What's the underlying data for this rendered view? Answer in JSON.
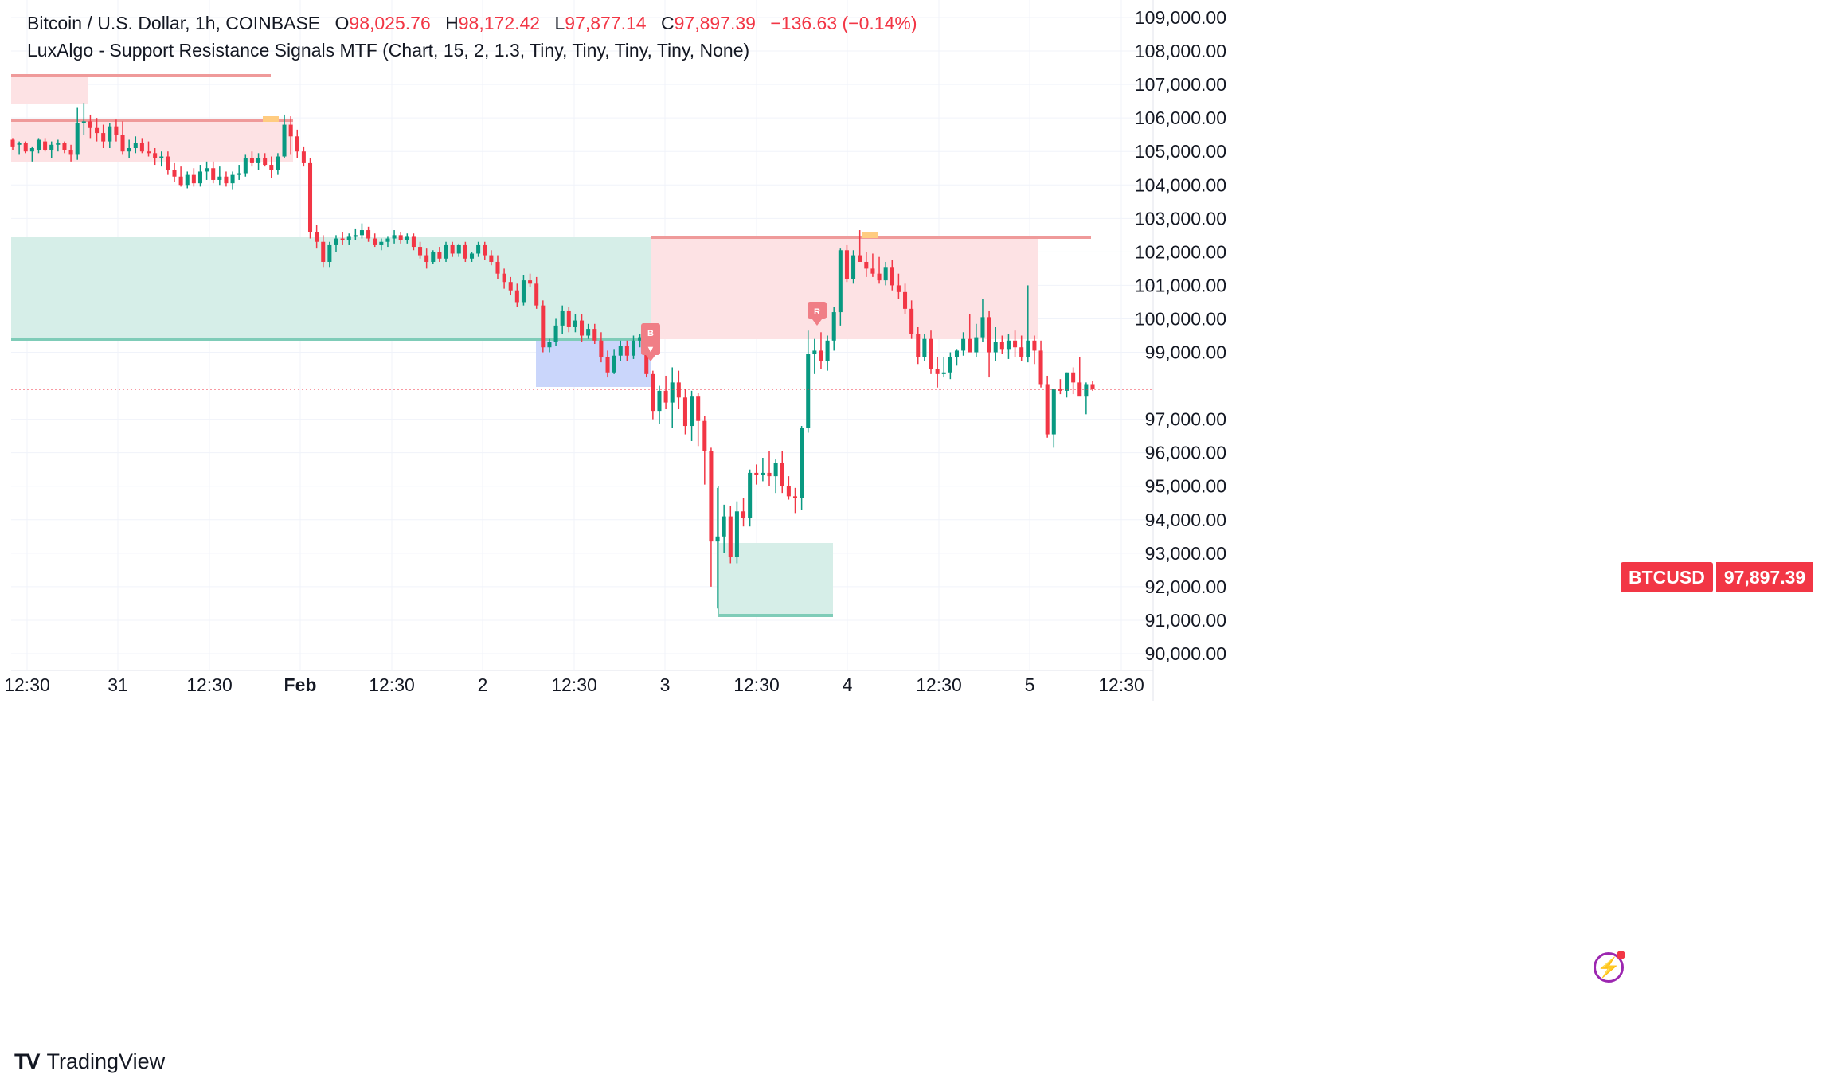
{
  "legend": {
    "symbol": "Bitcoin / U.S. Dollar, 1h, COINBASE",
    "open_label": "O",
    "open": "98,025.76",
    "high_label": "H",
    "high": "98,172.42",
    "low_label": "L",
    "low": "97,877.14",
    "close_label": "C",
    "close": "97,897.39",
    "change": "−136.63 (−0.14%)",
    "indicator": "LuxAlgo - Support Resistance Signals MTF (Chart, 15, 2, 1.3, Tiny, Tiny, Tiny, Tiny, None)"
  },
  "price_tag": {
    "symbol": "BTCUSD",
    "price": "97,897.39"
  },
  "brand": {
    "name": "TradingView"
  },
  "icons": {
    "brand_logo": "tradingview-logo-icon",
    "bolt": "lightning-bolt-icon"
  },
  "markers": {
    "buy": "B",
    "resistance": "R"
  },
  "colors": {
    "up": "#089981",
    "down": "#f23645",
    "support_zone": "#d4ede7",
    "resistance_zone": "#fde0e3",
    "buy_zone": "#c7d4fb"
  },
  "chart_data": {
    "type": "candlestick",
    "yaxis_labels": [
      "109,000.00",
      "108,000.00",
      "107,000.00",
      "106,000.00",
      "105,000.00",
      "104,000.00",
      "103,000.00",
      "102,000.00",
      "101,000.00",
      "100,000.00",
      "99,000.00",
      "97,000.00",
      "96,000.00",
      "95,000.00",
      "94,000.00",
      "93,000.00",
      "92,000.00",
      "91,000.00",
      "90,000.00"
    ],
    "xaxis_labels": [
      "12:30",
      "31",
      "12:30",
      "Feb",
      "12:30",
      "2",
      "12:30",
      "3",
      "12:30",
      "4",
      "12:30",
      "5",
      "12:30"
    ],
    "ylim": [
      89600,
      109500
    ],
    "last_price": 97897.39,
    "candles": [
      [
        105350,
        105400,
        105050,
        105150
      ],
      [
        105200,
        105300,
        104900,
        105250
      ],
      [
        105250,
        105300,
        104950,
        105000
      ],
      [
        105000,
        105150,
        104700,
        105100
      ],
      [
        105050,
        105400,
        104950,
        105350
      ],
      [
        105300,
        105400,
        105000,
        105050
      ],
      [
        105050,
        105300,
        104800,
        105200
      ],
      [
        105200,
        105350,
        105000,
        105250
      ],
      [
        105250,
        105300,
        104950,
        105050
      ],
      [
        105050,
        105200,
        104700,
        104900
      ],
      [
        104900,
        106300,
        104750,
        105850
      ],
      [
        105850,
        106450,
        105500,
        105900
      ],
      [
        105900,
        106100,
        105400,
        105700
      ],
      [
        105700,
        106000,
        105300,
        105550
      ],
      [
        105550,
        105800,
        105100,
        105300
      ],
      [
        105300,
        105850,
        105100,
        105750
      ],
      [
        105750,
        105950,
        105300,
        105500
      ],
      [
        105500,
        105900,
        104900,
        105000
      ],
      [
        105000,
        105350,
        104800,
        105100
      ],
      [
        105100,
        105450,
        104950,
        105250
      ],
      [
        105250,
        105400,
        104950,
        105000
      ],
      [
        105000,
        105300,
        104850,
        104950
      ],
      [
        104950,
        105100,
        104600,
        104800
      ],
      [
        104800,
        105000,
        104550,
        104850
      ],
      [
        104850,
        105000,
        104300,
        104450
      ],
      [
        104450,
        104650,
        104100,
        104250
      ],
      [
        104250,
        104550,
        103950,
        104000
      ],
      [
        104000,
        104400,
        103900,
        104300
      ],
      [
        104300,
        104500,
        103950,
        104050
      ],
      [
        104050,
        104600,
        103950,
        104400
      ],
      [
        104400,
        104700,
        104150,
        104500
      ],
      [
        104500,
        104700,
        104050,
        104150
      ],
      [
        104150,
        104550,
        104000,
        104250
      ],
      [
        104250,
        104400,
        103950,
        104050
      ],
      [
        104050,
        104400,
        103850,
        104300
      ],
      [
        104300,
        104600,
        104150,
        104350
      ],
      [
        104350,
        104900,
        104250,
        104800
      ],
      [
        104800,
        105000,
        104550,
        104650
      ],
      [
        104650,
        104950,
        104450,
        104800
      ],
      [
        104800,
        104950,
        104550,
        104600
      ],
      [
        104600,
        104850,
        104200,
        104450
      ],
      [
        104450,
        104950,
        104300,
        104850
      ],
      [
        104850,
        106100,
        104800,
        105800
      ],
      [
        105800,
        106050,
        104900,
        105450
      ],
      [
        105450,
        105650,
        104800,
        105000
      ],
      [
        105000,
        105150,
        104550,
        104650
      ],
      [
        104650,
        104800,
        102400,
        102600
      ],
      [
        102600,
        102800,
        102100,
        102300
      ],
      [
        102300,
        102500,
        101550,
        101700
      ],
      [
        101700,
        102300,
        101550,
        102200
      ],
      [
        102200,
        102500,
        102000,
        102400
      ],
      [
        102400,
        102600,
        102200,
        102350
      ],
      [
        102350,
        102550,
        102200,
        102450
      ],
      [
        102450,
        102700,
        102350,
        102500
      ],
      [
        102500,
        102850,
        102400,
        102650
      ],
      [
        102650,
        102750,
        102300,
        102400
      ],
      [
        102400,
        102550,
        102150,
        102200
      ],
      [
        102200,
        102400,
        102050,
        102300
      ],
      [
        102300,
        102450,
        102150,
        102400
      ],
      [
        102400,
        102650,
        102250,
        102500
      ],
      [
        102500,
        102600,
        102250,
        102350
      ],
      [
        102350,
        102550,
        102250,
        102450
      ],
      [
        102450,
        102550,
        102050,
        102150
      ],
      [
        102150,
        102300,
        101800,
        101900
      ],
      [
        101900,
        102100,
        101500,
        101700
      ],
      [
        101700,
        102050,
        101650,
        102000
      ],
      [
        102000,
        102150,
        101700,
        101800
      ],
      [
        101800,
        102300,
        101700,
        102200
      ],
      [
        102200,
        102300,
        101850,
        101950
      ],
      [
        101950,
        102250,
        101850,
        102200
      ],
      [
        102200,
        102300,
        101700,
        101800
      ],
      [
        101800,
        102000,
        101700,
        101950
      ],
      [
        101950,
        102300,
        101850,
        102200
      ],
      [
        102200,
        102300,
        101750,
        101900
      ],
      [
        101900,
        102050,
        101600,
        101700
      ],
      [
        101700,
        101900,
        101200,
        101350
      ],
      [
        101350,
        101500,
        100900,
        101100
      ],
      [
        101100,
        101250,
        100700,
        100850
      ],
      [
        100850,
        101050,
        100350,
        100500
      ],
      [
        100500,
        101300,
        100400,
        101150
      ],
      [
        101150,
        101350,
        100950,
        101050
      ],
      [
        101050,
        101250,
        100300,
        100400
      ],
      [
        100400,
        100550,
        99000,
        99150
      ],
      [
        99150,
        99400,
        99000,
        99300
      ],
      [
        99300,
        100000,
        99200,
        99800
      ],
      [
        99800,
        100400,
        99550,
        100250
      ],
      [
        100250,
        100350,
        99600,
        99750
      ],
      [
        99750,
        100150,
        99600,
        99950
      ],
      [
        99950,
        100150,
        99300,
        99500
      ],
      [
        99500,
        99850,
        99400,
        99700
      ],
      [
        99700,
        99850,
        99250,
        99350
      ],
      [
        99350,
        99600,
        98700,
        98850
      ],
      [
        98850,
        99050,
        98250,
        98400
      ],
      [
        98400,
        99100,
        98350,
        98900
      ],
      [
        98900,
        99350,
        98750,
        99200
      ],
      [
        99200,
        99350,
        98750,
        98900
      ],
      [
        98900,
        99500,
        98800,
        99350
      ],
      [
        99350,
        99550,
        99150,
        99450
      ],
      [
        99450,
        99550,
        98250,
        98350
      ],
      [
        98350,
        98450,
        97000,
        97250
      ],
      [
        97250,
        98000,
        96850,
        97850
      ],
      [
        97850,
        98300,
        97300,
        97500
      ],
      [
        97500,
        98550,
        96750,
        98100
      ],
      [
        98100,
        98450,
        97300,
        97650
      ],
      [
        97650,
        97900,
        96550,
        96800
      ],
      [
        96800,
        97850,
        96350,
        97700
      ],
      [
        97700,
        97800,
        96200,
        96950
      ],
      [
        96950,
        97100,
        95050,
        96050
      ],
      [
        96050,
        96150,
        92000,
        93350
      ],
      [
        93350,
        94950,
        91350,
        93500
      ],
      [
        93500,
        94450,
        93000,
        94100
      ],
      [
        94100,
        94400,
        92700,
        92900
      ],
      [
        92900,
        94550,
        92700,
        94250
      ],
      [
        94250,
        94650,
        93800,
        94050
      ],
      [
        94050,
        95500,
        93800,
        95400
      ],
      [
        95400,
        95650,
        95050,
        95350
      ],
      [
        95350,
        95850,
        95150,
        95400
      ],
      [
        95400,
        96050,
        95000,
        95300
      ],
      [
        95300,
        95800,
        94800,
        95700
      ],
      [
        95700,
        96050,
        94800,
        95000
      ],
      [
        95000,
        95300,
        94600,
        94700
      ],
      [
        94700,
        94950,
        94200,
        94650
      ],
      [
        94650,
        96800,
        94300,
        96750
      ],
      [
        96750,
        99650,
        96600,
        98950
      ],
      [
        98950,
        99400,
        98350,
        99050
      ],
      [
        99050,
        99600,
        98500,
        98750
      ],
      [
        98750,
        99500,
        98450,
        99350
      ],
      [
        99350,
        100350,
        99050,
        100200
      ],
      [
        100200,
        102100,
        99800,
        102050
      ],
      [
        102050,
        102200,
        101100,
        101200
      ],
      [
        101200,
        102050,
        101050,
        101900
      ],
      [
        101900,
        102650,
        101700,
        101700
      ],
      [
        101700,
        102000,
        101250,
        101500
      ],
      [
        101500,
        101950,
        101250,
        101350
      ],
      [
        101350,
        101850,
        101050,
        101150
      ],
      [
        101150,
        101700,
        101000,
        101550
      ],
      [
        101550,
        101750,
        100850,
        101000
      ],
      [
        101000,
        101350,
        100600,
        100800
      ],
      [
        100800,
        101050,
        100150,
        100300
      ],
      [
        100300,
        100550,
        99400,
        99550
      ],
      [
        99550,
        99750,
        98650,
        98850
      ],
      [
        98850,
        99550,
        98750,
        99400
      ],
      [
        99400,
        99650,
        98350,
        98500
      ],
      [
        98500,
        98850,
        97950,
        98350
      ],
      [
        98350,
        98850,
        98250,
        98400
      ],
      [
        98400,
        99000,
        98200,
        98850
      ],
      [
        98850,
        99100,
        98600,
        99050
      ],
      [
        99050,
        99600,
        98900,
        99400
      ],
      [
        99400,
        100150,
        99100,
        99000
      ],
      [
        99000,
        99850,
        98850,
        99450
      ],
      [
        99450,
        100600,
        99300,
        100050
      ],
      [
        100050,
        100250,
        98250,
        99000
      ],
      [
        99000,
        99750,
        98750,
        99300
      ],
      [
        99300,
        99500,
        98950,
        99100
      ],
      [
        99100,
        99550,
        98800,
        99350
      ],
      [
        99350,
        99650,
        98850,
        99150
      ],
      [
        99150,
        99500,
        98750,
        98850
      ],
      [
        98850,
        101000,
        98700,
        99350
      ],
      [
        99350,
        99500,
        98650,
        99050
      ],
      [
        99050,
        99350,
        97950,
        98050
      ],
      [
        98050,
        98300,
        96450,
        96550
      ],
      [
        96550,
        97900,
        96150,
        97900
      ],
      [
        97900,
        98200,
        97750,
        97850
      ],
      [
        97850,
        98400,
        97650,
        98400
      ],
      [
        98400,
        98550,
        97750,
        98100
      ],
      [
        98100,
        98850,
        97750,
        97700
      ],
      [
        97700,
        98100,
        97150,
        98050
      ],
      [
        98050,
        98150,
        97850,
        97900
      ]
    ]
  }
}
